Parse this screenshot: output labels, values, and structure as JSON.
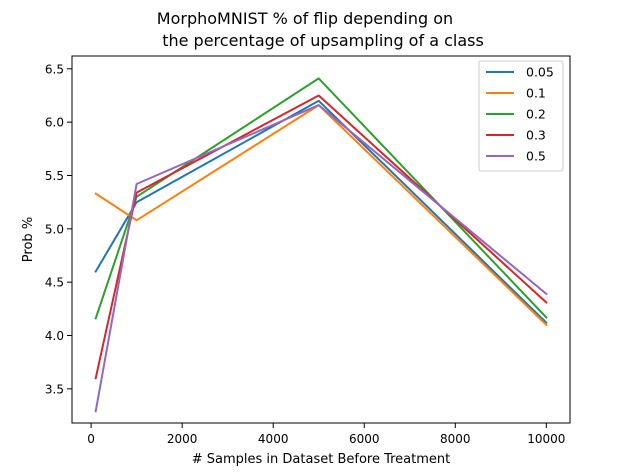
{
  "chart_data": {
    "type": "line",
    "title_lines": [
      "MorphoMNIST % of flip depending on",
      "the percentage of upsampling of a class"
    ],
    "xlabel": "# Samples in Dataset Before Treatment",
    "ylabel": "Prob %",
    "xlim": [
      -420,
      10520
    ],
    "ylim": [
      3.18,
      6.62
    ],
    "xticks": [
      0,
      2000,
      4000,
      6000,
      8000,
      10000
    ],
    "xtick_labels": [
      "0",
      "2000",
      "4000",
      "6000",
      "8000",
      "10000"
    ],
    "yticks": [
      3.5,
      4.0,
      4.5,
      5.0,
      5.5,
      6.0,
      6.5
    ],
    "ytick_labels": [
      "3.5",
      "4.0",
      "4.5",
      "5.0",
      "5.5",
      "6.0",
      "6.5"
    ],
    "grid": false,
    "legend_position": "top-right",
    "x": [
      100,
      1000,
      5000,
      10000
    ],
    "series": [
      {
        "name": "0.05",
        "color": "#1f77b4",
        "values": [
          4.6,
          5.25,
          6.2,
          4.12
        ]
      },
      {
        "name": "0.1",
        "color": "#ff7f0e",
        "values": [
          5.33,
          5.08,
          6.16,
          4.1
        ]
      },
      {
        "name": "0.2",
        "color": "#2ca02c",
        "values": [
          4.16,
          5.3,
          6.41,
          4.17
        ]
      },
      {
        "name": "0.3",
        "color": "#d62728",
        "values": [
          3.6,
          5.34,
          6.25,
          4.31
        ]
      },
      {
        "name": "0.5",
        "color": "#9467bd",
        "values": [
          3.29,
          5.42,
          6.16,
          4.39
        ]
      }
    ]
  }
}
